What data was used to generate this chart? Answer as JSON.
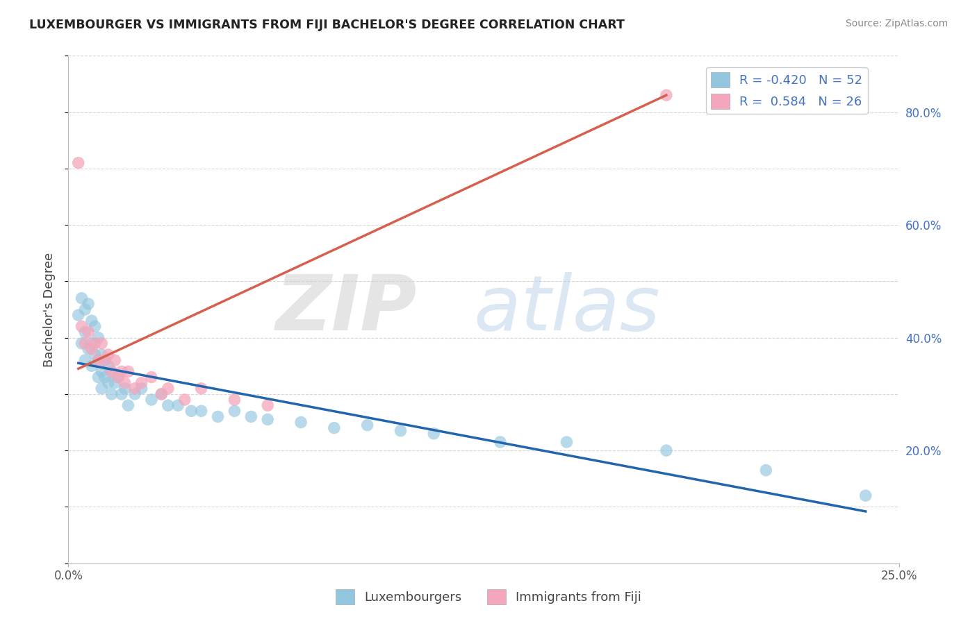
{
  "title": "LUXEMBOURGER VS IMMIGRANTS FROM FIJI BACHELOR'S DEGREE CORRELATION CHART",
  "source": "Source: ZipAtlas.com",
  "ylabel": "Bachelor's Degree",
  "xlim": [
    0.0,
    0.25
  ],
  "ylim": [
    0.0,
    0.9
  ],
  "blue_color": "#92c5de",
  "pink_color": "#f4a6bc",
  "blue_line_color": "#2166ac",
  "pink_line_color": "#d6604d",
  "grid_color": "#cccccc",
  "lux_x": [
    0.003,
    0.004,
    0.004,
    0.005,
    0.005,
    0.005,
    0.006,
    0.006,
    0.007,
    0.007,
    0.007,
    0.008,
    0.008,
    0.009,
    0.009,
    0.009,
    0.01,
    0.01,
    0.01,
    0.011,
    0.011,
    0.012,
    0.012,
    0.013,
    0.013,
    0.014,
    0.015,
    0.016,
    0.017,
    0.018,
    0.02,
    0.022,
    0.025,
    0.028,
    0.03,
    0.033,
    0.037,
    0.04,
    0.045,
    0.05,
    0.055,
    0.06,
    0.07,
    0.08,
    0.09,
    0.1,
    0.11,
    0.13,
    0.15,
    0.18,
    0.21,
    0.24
  ],
  "lux_y": [
    0.44,
    0.47,
    0.39,
    0.45,
    0.41,
    0.36,
    0.46,
    0.38,
    0.43,
    0.39,
    0.35,
    0.42,
    0.37,
    0.4,
    0.36,
    0.33,
    0.37,
    0.34,
    0.31,
    0.36,
    0.33,
    0.35,
    0.32,
    0.34,
    0.3,
    0.32,
    0.33,
    0.3,
    0.31,
    0.28,
    0.3,
    0.31,
    0.29,
    0.3,
    0.28,
    0.28,
    0.27,
    0.27,
    0.26,
    0.27,
    0.26,
    0.255,
    0.25,
    0.24,
    0.245,
    0.235,
    0.23,
    0.215,
    0.215,
    0.2,
    0.165,
    0.12
  ],
  "fiji_x": [
    0.003,
    0.004,
    0.005,
    0.006,
    0.007,
    0.008,
    0.009,
    0.01,
    0.011,
    0.012,
    0.013,
    0.014,
    0.015,
    0.016,
    0.017,
    0.018,
    0.02,
    0.022,
    0.025,
    0.028,
    0.03,
    0.035,
    0.04,
    0.05,
    0.06,
    0.18
  ],
  "fiji_y": [
    0.71,
    0.42,
    0.39,
    0.41,
    0.38,
    0.39,
    0.36,
    0.39,
    0.36,
    0.37,
    0.34,
    0.36,
    0.33,
    0.34,
    0.32,
    0.34,
    0.31,
    0.32,
    0.33,
    0.3,
    0.31,
    0.29,
    0.31,
    0.29,
    0.28,
    0.83
  ],
  "lux_line_x": [
    0.003,
    0.24
  ],
  "lux_line_y": [
    0.355,
    0.092
  ],
  "fiji_line_x": [
    0.003,
    0.18
  ],
  "fiji_line_y": [
    0.345,
    0.83
  ]
}
